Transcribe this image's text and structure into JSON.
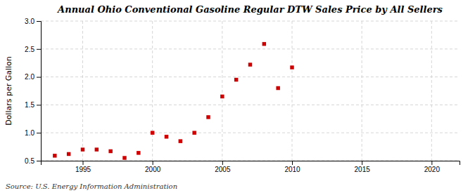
{
  "chart_data": {
    "type": "scatter",
    "title": "Annual Ohio Conventional Gasoline Regular DTW Sales Price by All Sellers",
    "ylabel": "Dollars per Gallon",
    "annotations": [
      "Source: U.S. Energy Information Administration"
    ],
    "x": [
      1993,
      1994,
      1995,
      1996,
      1997,
      1998,
      1999,
      2000,
      2001,
      2002,
      2003,
      2004,
      2005,
      2006,
      2007,
      2008,
      2009,
      2010
    ],
    "values": [
      0.59,
      0.62,
      0.7,
      0.7,
      0.67,
      0.55,
      0.64,
      1.0,
      0.93,
      0.85,
      1.0,
      1.28,
      1.65,
      1.95,
      2.22,
      2.59,
      1.8,
      2.17
    ],
    "color": "#cc0000",
    "marker": "square",
    "xlim": [
      1992,
      2022
    ],
    "ylim": [
      0.5,
      3.0
    ],
    "xticks": [
      1995,
      2000,
      2005,
      2010,
      2015,
      2020
    ],
    "yticks": [
      0.5,
      {
        "value": 1.0,
        "label": "1.0"
      },
      1.5,
      {
        "value": 2.0,
        "label": "2.0"
      },
      2.5,
      {
        "value": 3.0,
        "label": "3.0"
      }
    ],
    "grid": true
  }
}
